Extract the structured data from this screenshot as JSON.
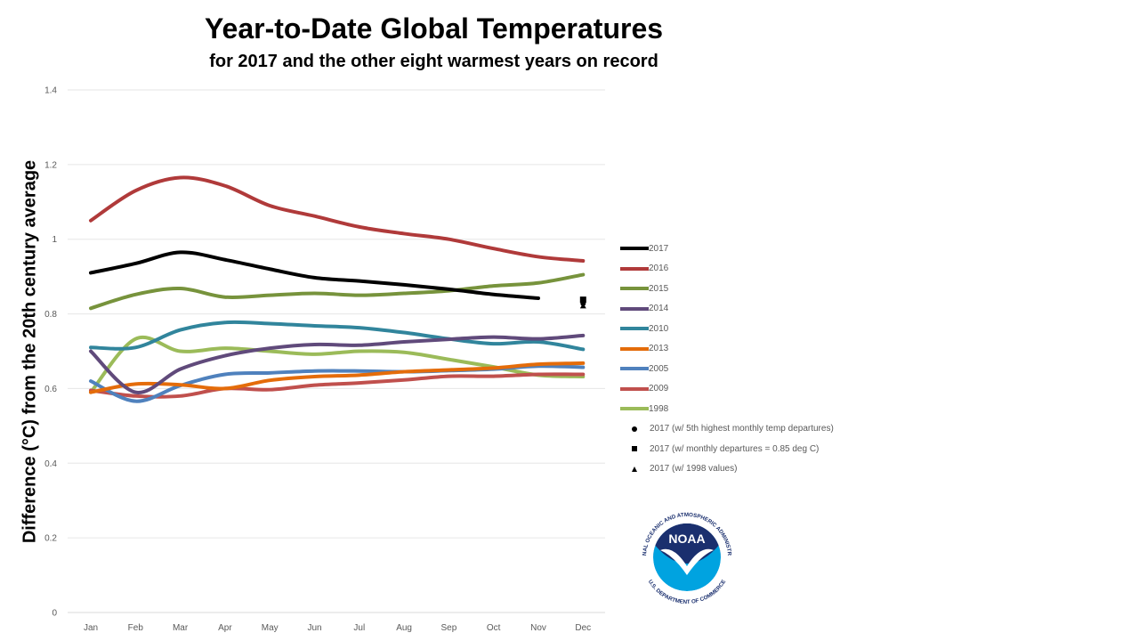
{
  "chart_data": {
    "type": "line",
    "title": "Year-to-Date Global Temperatures",
    "subtitle": "for 2017 and the other eight warmest years on record",
    "xlabel": "",
    "ylabel": "Difference (°C) from the 20th century average",
    "ylim": [
      0,
      1.4
    ],
    "yticks": [
      "0",
      "0.2",
      "0.4",
      "0.6",
      "0.8",
      "1",
      "1.2",
      "1.4"
    ],
    "ytick_values": [
      0,
      0.2,
      0.4,
      0.6,
      0.8,
      1.0,
      1.2,
      1.4
    ],
    "categories": [
      "Jan",
      "Feb",
      "Mar",
      "Apr",
      "May",
      "Jun",
      "Jul",
      "Aug",
      "Sep",
      "Oct",
      "Nov",
      "Dec"
    ],
    "grid": true,
    "legend_position": "right",
    "series": [
      {
        "name": "2017",
        "color": "#000000",
        "values": [
          0.91,
          0.935,
          0.965,
          0.945,
          0.92,
          0.897,
          0.888,
          0.878,
          0.866,
          0.852,
          0.842,
          null
        ]
      },
      {
        "name": "2016",
        "color": "#b03a3a",
        "values": [
          1.05,
          1.13,
          1.165,
          1.143,
          1.09,
          1.062,
          1.033,
          1.015,
          1.0,
          0.975,
          0.953,
          0.942
        ]
      },
      {
        "name": "2015",
        "color": "#77933c",
        "values": [
          0.815,
          0.852,
          0.868,
          0.845,
          0.85,
          0.855,
          0.85,
          0.855,
          0.862,
          0.875,
          0.883,
          0.905
        ]
      },
      {
        "name": "2014",
        "color": "#604a7b",
        "values": [
          0.7,
          0.59,
          0.652,
          0.688,
          0.708,
          0.718,
          0.716,
          0.725,
          0.732,
          0.738,
          0.733,
          0.742
        ]
      },
      {
        "name": "2010",
        "color": "#31859c",
        "values": [
          0.71,
          0.71,
          0.757,
          0.777,
          0.774,
          0.768,
          0.763,
          0.75,
          0.733,
          0.72,
          0.725,
          0.705
        ]
      },
      {
        "name": "2013",
        "color": "#e46c0a",
        "values": [
          0.59,
          0.612,
          0.61,
          0.6,
          0.622,
          0.632,
          0.636,
          0.645,
          0.65,
          0.655,
          0.665,
          0.668
        ]
      },
      {
        "name": "2005",
        "color": "#4f81bd",
        "values": [
          0.62,
          0.566,
          0.608,
          0.638,
          0.642,
          0.647,
          0.647,
          0.645,
          0.648,
          0.652,
          0.66,
          0.657
        ]
      },
      {
        "name": "2009",
        "color": "#c0504d",
        "values": [
          0.595,
          0.58,
          0.58,
          0.6,
          0.597,
          0.609,
          0.615,
          0.623,
          0.633,
          0.633,
          0.638,
          0.638
        ]
      },
      {
        "name": "1998",
        "color": "#9bbb59",
        "values": [
          0.59,
          0.733,
          0.7,
          0.708,
          0.7,
          0.692,
          0.7,
          0.697,
          0.678,
          0.658,
          0.636,
          0.632
        ]
      }
    ],
    "dec_markers": [
      {
        "name": "2017 (w/ 5th highest monthly temp departures)",
        "shape": "circle",
        "x": "Dec",
        "y": 0.828
      },
      {
        "name": "2017 (w/ monthly departures = 0.85 deg C)",
        "shape": "square",
        "x": "Dec",
        "y": 0.838
      },
      {
        "name": "2017 (w/ 1998 values)",
        "shape": "triangle",
        "x": "Dec",
        "y": 0.822
      }
    ]
  },
  "legend": [
    {
      "label": "2017",
      "kind": "line",
      "color": "#000000"
    },
    {
      "label": "2016",
      "kind": "line",
      "color": "#b03a3a"
    },
    {
      "label": "2015",
      "kind": "line",
      "color": "#77933c"
    },
    {
      "label": "2014",
      "kind": "line",
      "color": "#604a7b"
    },
    {
      "label": "2010",
      "kind": "line",
      "color": "#31859c"
    },
    {
      "label": "2013",
      "kind": "line",
      "color": "#e46c0a"
    },
    {
      "label": "2005",
      "kind": "line",
      "color": "#4f81bd"
    },
    {
      "label": "2009",
      "kind": "line",
      "color": "#c0504d"
    },
    {
      "label": "1998",
      "kind": "line",
      "color": "#9bbb59"
    },
    {
      "label": "2017 (w/ 5th highest monthly temp departures)",
      "kind": "circle",
      "color": "#000000"
    },
    {
      "label": "2017 (w/ monthly departures = 0.85 deg C)",
      "kind": "square",
      "color": "#000000"
    },
    {
      "label": "2017 (w/ 1998 values)",
      "kind": "triangle",
      "color": "#000000"
    }
  ],
  "logo": {
    "text": "NOAA",
    "ring_top": "NATIONAL OCEANIC AND ATMOSPHERIC ADMINISTRATION",
    "ring_bottom": "U.S. DEPARTMENT OF COMMERCE",
    "colors": {
      "navy": "#1a2f6e",
      "sky": "#00a3e0",
      "white": "#ffffff"
    }
  }
}
